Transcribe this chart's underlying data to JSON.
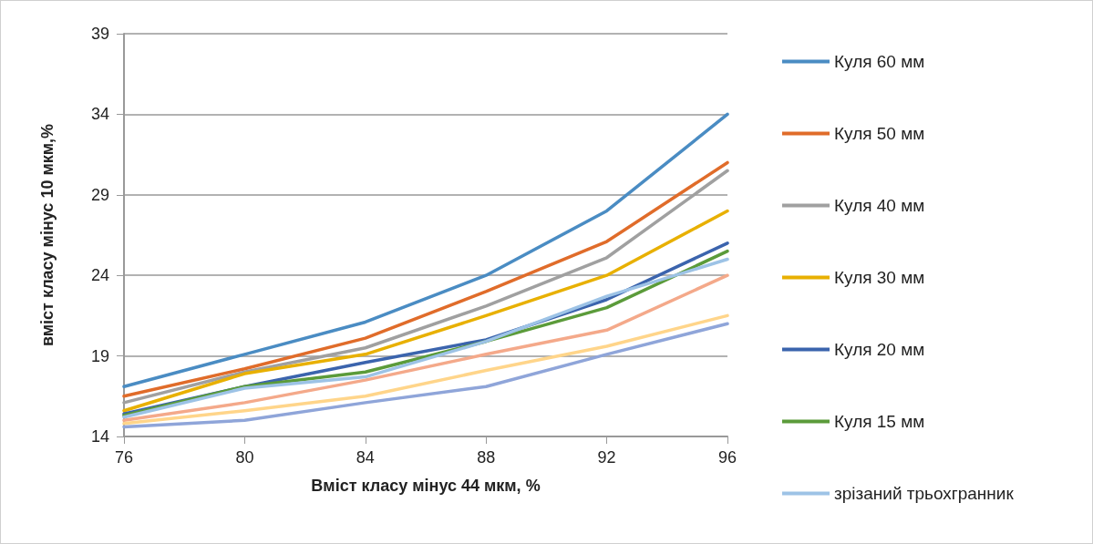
{
  "chart_data": {
    "type": "line",
    "xlabel": "Вміст класу мінус 44 мкм, %",
    "ylabel": "вміст класу мінус 10 мкм,%",
    "x": [
      76,
      80,
      84,
      88,
      92,
      96
    ],
    "xlim": [
      76,
      96
    ],
    "xticks": [
      76,
      80,
      84,
      88,
      92,
      96
    ],
    "ylim": [
      14,
      39
    ],
    "yticks": [
      14,
      19,
      24,
      29,
      34,
      39
    ],
    "grid": "y",
    "legend": "right",
    "marker": "none",
    "line_style": "solid",
    "series": [
      {
        "name": "Куля 60 мм",
        "color": "#4a8cc3",
        "values": [
          17.1,
          19.1,
          21.1,
          24,
          28,
          34
        ]
      },
      {
        "name": "Куля 50 мм",
        "color": "#e06c2a",
        "values": [
          16.5,
          18.2,
          20.1,
          23,
          26.1,
          31
        ]
      },
      {
        "name": "Куля 40 мм",
        "color": "#a0a0a0",
        "values": [
          16.1,
          18,
          19.5,
          22.1,
          25.1,
          30.5
        ]
      },
      {
        "name": "Куля 30 мм",
        "color": "#e8b000",
        "values": [
          15.6,
          17.9,
          19.1,
          21.5,
          24,
          28
        ]
      },
      {
        "name": "Куля 20 мм",
        "color": "#3b64ad",
        "values": [
          15.4,
          17.1,
          18.6,
          20,
          22.5,
          26
        ]
      },
      {
        "name": "Куля 15 мм",
        "color": "#5b9b3a",
        "values": [
          15.3,
          17.1,
          18,
          19.9,
          22,
          25.5
        ]
      },
      {
        "name": "зрізаний трьохгранник",
        "color": "#9dc3e6",
        "values": [
          15.2,
          17,
          17.7,
          19.9,
          22.7,
          25
        ]
      },
      {
        "color": "#f4a98a",
        "values": [
          15,
          16.1,
          17.5,
          19.1,
          20.6,
          24
        ]
      },
      {
        "color": "#ffd58a",
        "values": [
          14.8,
          15.6,
          16.5,
          18.1,
          19.6,
          21.5
        ]
      },
      {
        "color": "#8fa5d9",
        "values": [
          14.6,
          15,
          16.1,
          17.1,
          19.1,
          21
        ]
      }
    ]
  }
}
